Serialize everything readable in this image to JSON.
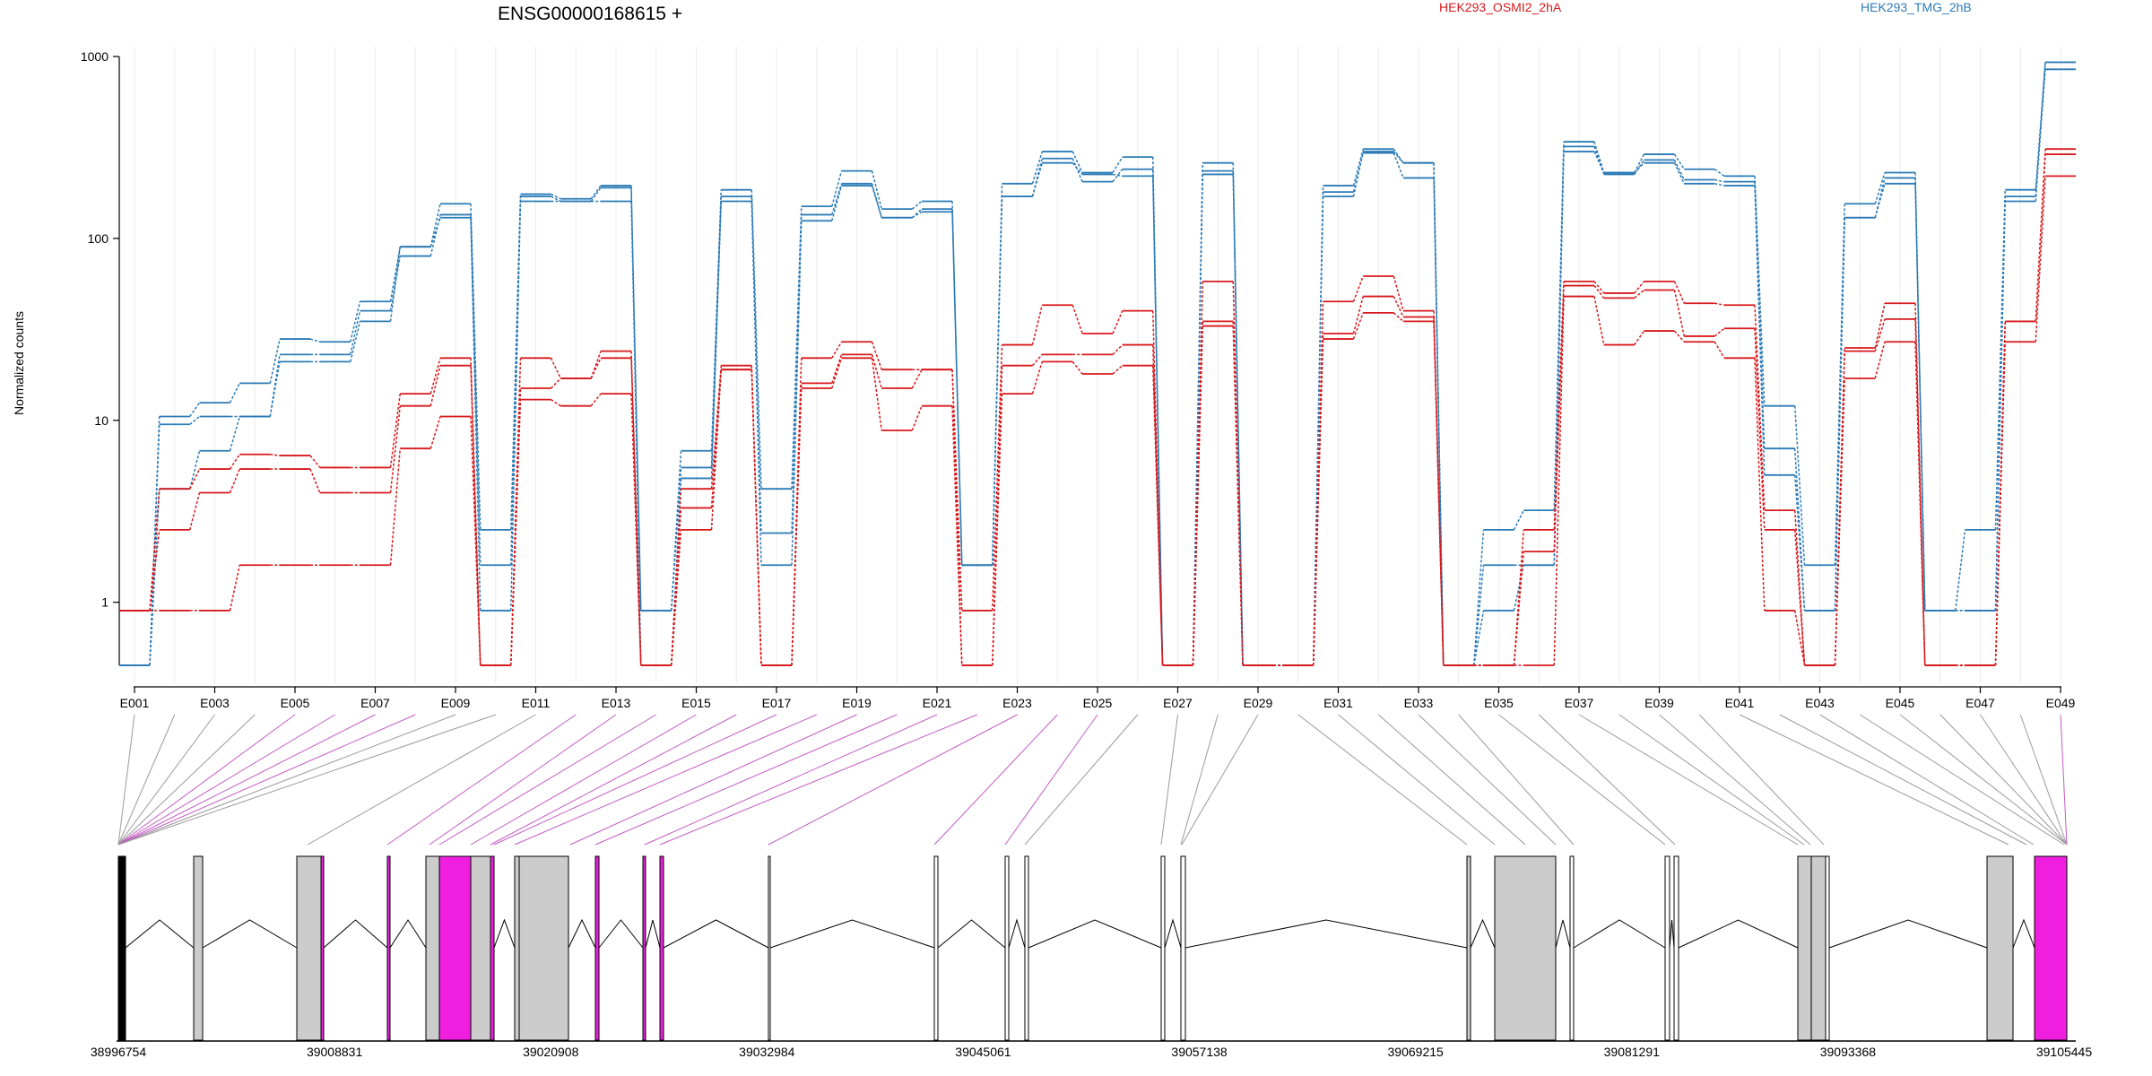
{
  "title": "ENSG00000168615 +",
  "ylabel": "Normalized counts",
  "legend": [
    {
      "name": "HEK293_OSMI2_2hA",
      "color": "#d7191c"
    },
    {
      "name": "HEK293_TMG_2hB",
      "color": "#2c7bb6"
    }
  ],
  "chart_data": {
    "type": "line",
    "title": "ENSG00000168615 +",
    "ylabel": "Normalized counts",
    "yscale": "log",
    "ylim": [
      0.45,
      1000
    ],
    "yticks": [
      1,
      10,
      100,
      1000
    ],
    "ytick_labels": [
      "1",
      "10",
      "100",
      "1000"
    ],
    "exon_tick_labels": [
      "E001",
      "E003",
      "E005",
      "E007",
      "E009",
      "E011",
      "E013",
      "E015",
      "E017",
      "E019",
      "E021",
      "E023",
      "E025",
      "E027",
      "E029",
      "E031",
      "E033",
      "E035",
      "E037",
      "E039",
      "E041",
      "E043",
      "E045",
      "E047",
      "E049"
    ],
    "exons": [
      "E001",
      "E002",
      "E003",
      "E004",
      "E005",
      "E006",
      "E007",
      "E008",
      "E009",
      "E010",
      "E011",
      "E012",
      "E013",
      "E014",
      "E015",
      "E016",
      "E017",
      "E018",
      "E019",
      "E020",
      "E021",
      "E022",
      "E023",
      "E024",
      "E025",
      "E026",
      "E027",
      "E028",
      "E029",
      "E030",
      "E031",
      "E032",
      "E033",
      "E034",
      "E035",
      "E036",
      "E037",
      "E038",
      "E039",
      "E040",
      "E041",
      "E042",
      "E043",
      "E044",
      "E045",
      "E046",
      "E047",
      "E048",
      "E049"
    ],
    "series": [
      {
        "group": "HEK293_TMG_2hB",
        "color": "#2c7bb6",
        "values": [
          0.45,
          10.5,
          12.5,
          16,
          28,
          27,
          45,
          90,
          155,
          2.5,
          175,
          165,
          195,
          0.9,
          6.8,
          185,
          4.2,
          150,
          235,
          145,
          160,
          1.6,
          200,
          300,
          230,
          280,
          0.45,
          260,
          0.45,
          0.45,
          195,
          310,
          260,
          0.45,
          2.5,
          3.2,
          340,
          230,
          290,
          240,
          220,
          12,
          1.6,
          155,
          230,
          0.9,
          2.5,
          185,
          930
        ]
      },
      {
        "group": "HEK293_TMG_2hB",
        "color": "#2c7bb6",
        "values": [
          0.45,
          9.5,
          10.5,
          10.5,
          23,
          23,
          40,
          80,
          135,
          1.6,
          170,
          160,
          160,
          0.9,
          5.5,
          170,
          2.4,
          135,
          200,
          130,
          140,
          1.6,
          170,
          275,
          205,
          240,
          0.45,
          235,
          0.45,
          0.45,
          180,
          295,
          215,
          0.45,
          1.6,
          1.6,
          320,
          225,
          270,
          210,
          205,
          7,
          0.9,
          130,
          215,
          0.9,
          0.9,
          170,
          850
        ]
      },
      {
        "group": "HEK293_TMG_2hB",
        "color": "#2c7bb6",
        "values": [
          0.45,
          4.2,
          6.8,
          10.5,
          21,
          21,
          35,
          90,
          130,
          0.9,
          160,
          160,
          190,
          0.45,
          4.8,
          160,
          1.6,
          125,
          195,
          130,
          145,
          1.6,
          170,
          260,
          225,
          220,
          0.45,
          225,
          0.45,
          0.45,
          170,
          300,
          260,
          0.45,
          0.9,
          1.6,
          300,
          230,
          260,
          200,
          195,
          5,
          0.9,
          130,
          200,
          0.9,
          0.9,
          160,
          930
        ]
      },
      {
        "group": "HEK293_OSMI2_2hA",
        "color": "#d7191c",
        "values": [
          0.9,
          4.2,
          5.4,
          6.5,
          6.4,
          5.5,
          5.5,
          14,
          22,
          0.45,
          22,
          17,
          24,
          0.45,
          4.2,
          20,
          0.45,
          22,
          27,
          19,
          19,
          0.9,
          26,
          43,
          30,
          40,
          0.45,
          58,
          0.45,
          0.45,
          45,
          62,
          40,
          0.45,
          0.45,
          2.5,
          58,
          50,
          58,
          44,
          43,
          3.2,
          0.45,
          25,
          44,
          0.45,
          0.45,
          35,
          310
        ]
      },
      {
        "group": "HEK293_OSMI2_2hA",
        "color": "#d7191c",
        "values": [
          0.9,
          2.5,
          4,
          5.4,
          5.4,
          4,
          4,
          12,
          20,
          0.45,
          15,
          17,
          22,
          0.45,
          3.3,
          19,
          0.45,
          16,
          23,
          15,
          19,
          0.45,
          20,
          23,
          23,
          26,
          0.45,
          35,
          0.45,
          0.45,
          30,
          48,
          37,
          0.45,
          0.45,
          1.9,
          55,
          47,
          52,
          29,
          32,
          2.5,
          0.45,
          24,
          36,
          0.45,
          0.45,
          35,
          290
        ]
      },
      {
        "group": "HEK293_OSMI2_2hA",
        "color": "#d7191c",
        "values": [
          0.9,
          0.9,
          0.9,
          1.6,
          1.6,
          1.6,
          1.6,
          7,
          10.5,
          0.45,
          13,
          12,
          14,
          0.45,
          2.5,
          19,
          0.45,
          15,
          22,
          8.8,
          12,
          0.45,
          14,
          21,
          18,
          20,
          0.45,
          33,
          0.45,
          0.45,
          28,
          39,
          35,
          0.45,
          0.45,
          0.45,
          48,
          26,
          31,
          27,
          22,
          0.9,
          0.45,
          17,
          27,
          0.45,
          0.45,
          27,
          220
        ]
      }
    ]
  },
  "gene_model": {
    "start_label": "38996754",
    "coord_labels": [
      "38996754",
      "39008831",
      "39020908",
      "39032984",
      "39045061",
      "39057138",
      "39069215",
      "39081291",
      "39093368",
      "39105445"
    ]
  }
}
